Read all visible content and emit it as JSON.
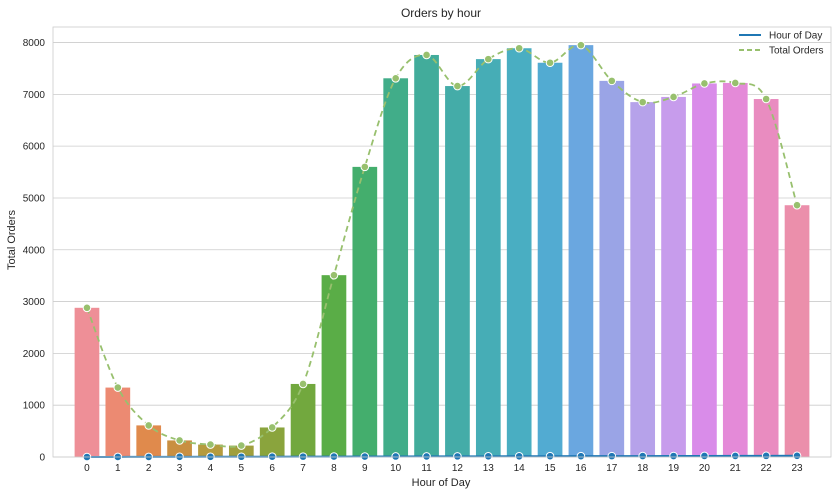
{
  "chart_data": {
    "type": "bar",
    "title": "Orders by hour",
    "xlabel": "Hour of Day",
    "ylabel": "Total Orders",
    "ylim": [
      0,
      8300
    ],
    "yticks": [
      0,
      1000,
      2000,
      3000,
      4000,
      5000,
      6000,
      7000,
      8000
    ],
    "grid": true,
    "legend_position": "top-right",
    "categories": [
      "0",
      "1",
      "2",
      "3",
      "4",
      "5",
      "6",
      "7",
      "8",
      "9",
      "10",
      "11",
      "12",
      "13",
      "14",
      "15",
      "16",
      "17",
      "18",
      "19",
      "20",
      "21",
      "22",
      "23"
    ],
    "values": [
      2880,
      1340,
      610,
      320,
      240,
      220,
      570,
      1410,
      3510,
      5600,
      7310,
      7760,
      7160,
      7680,
      7890,
      7610,
      7950,
      7260,
      6850,
      6950,
      7210,
      7220,
      6910,
      4860
    ],
    "bar_colors": [
      "#ee8f97",
      "#ec8a72",
      "#e08a4c",
      "#c98f41",
      "#b59b3e",
      "#a09f3d",
      "#8aa43d",
      "#72a83e",
      "#5aad47",
      "#44ae6d",
      "#41ad89",
      "#42ac9b",
      "#44aca8",
      "#46adb6",
      "#49aec2",
      "#52abd2",
      "#6aa7e0",
      "#9aa4e6",
      "#b6a2ea",
      "#c79cec",
      "#d98ce9",
      "#e48ad8",
      "#e98cc0",
      "#eb8fab"
    ],
    "series": [
      {
        "name": "Hour of Day",
        "color": "#1f77b4",
        "style": "solid",
        "values": [
          0,
          1,
          2,
          3,
          4,
          5,
          6,
          7,
          8,
          9,
          10,
          11,
          12,
          13,
          14,
          15,
          16,
          17,
          18,
          19,
          20,
          21,
          22,
          23
        ]
      },
      {
        "name": "Total Orders",
        "color": "#98c06e",
        "style": "dashed",
        "values": [
          2880,
          1340,
          610,
          320,
          240,
          220,
          570,
          1410,
          3510,
          5600,
          7310,
          7760,
          7160,
          7680,
          7890,
          7610,
          7950,
          7260,
          6850,
          6950,
          7210,
          7220,
          6910,
          4860
        ]
      }
    ]
  }
}
